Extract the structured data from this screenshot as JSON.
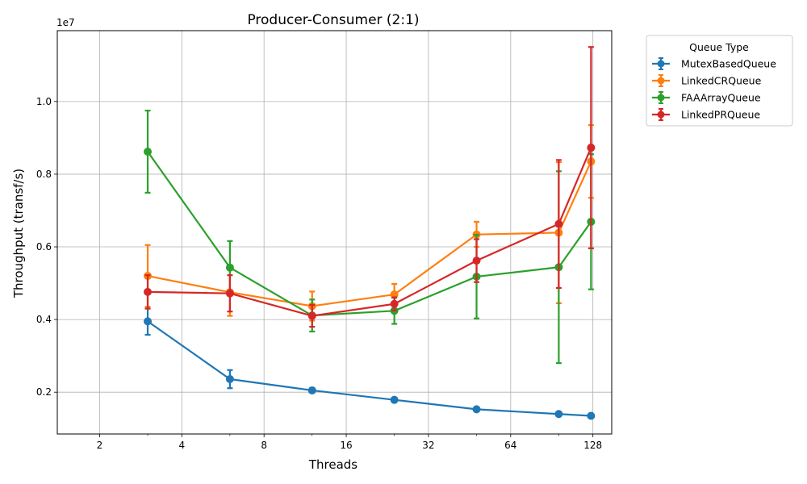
{
  "chart_data": {
    "type": "line",
    "title": "Producer-Consumer (2:1)",
    "xlabel": "Threads",
    "ylabel": "Throughput (transf/s)",
    "y_offset_label": "1e7",
    "x_scale": "log2",
    "x_ticks": [
      2,
      4,
      8,
      16,
      32,
      64,
      128
    ],
    "x_tick_labels": [
      "2",
      "4",
      "8",
      "16",
      "32",
      "64",
      "128"
    ],
    "xlim": [
      1.4,
      150
    ],
    "y_ticks": [
      0.2,
      0.4,
      0.6,
      0.8,
      1.0
    ],
    "y_tick_labels": [
      "0.2",
      "0.4",
      "0.6",
      "0.8",
      "1.0"
    ],
    "ylim": [
      0.085,
      1.195
    ],
    "grid": true,
    "legend_title": "Queue Type",
    "legend_position": "outside-top-right",
    "series": [
      {
        "name": "MutexBasedQueue",
        "color": "#1f77b4",
        "x": [
          3,
          6,
          12,
          24,
          48,
          96,
          126
        ],
        "y": [
          0.395,
          0.236,
          0.205,
          0.179,
          0.153,
          0.14,
          0.135
        ],
        "err_low": [
          0.358,
          0.211,
          0.199,
          0.175,
          0.15,
          0.137,
          0.133
        ],
        "err_high": [
          0.432,
          0.261,
          0.211,
          0.183,
          0.156,
          0.143,
          0.137
        ]
      },
      {
        "name": "LinkedCRQueue",
        "color": "#ff7f0e",
        "x": [
          3,
          6,
          12,
          24,
          48,
          96,
          126
        ],
        "y": [
          0.52,
          0.475,
          0.437,
          0.469,
          0.634,
          0.639,
          0.835
        ],
        "err_low": [
          0.435,
          0.41,
          0.397,
          0.44,
          0.6,
          0.445,
          0.735
        ],
        "err_high": [
          0.605,
          0.54,
          0.477,
          0.498,
          0.669,
          0.833,
          0.935
        ]
      },
      {
        "name": "FAAArrayQueue",
        "color": "#2ca02c",
        "x": [
          3,
          6,
          12,
          24,
          48,
          96,
          126
        ],
        "y": [
          0.862,
          0.543,
          0.411,
          0.424,
          0.518,
          0.544,
          0.669
        ],
        "err_low": [
          0.749,
          0.47,
          0.367,
          0.388,
          0.403,
          0.28,
          0.483
        ],
        "err_high": [
          0.975,
          0.616,
          0.455,
          0.46,
          0.633,
          0.808,
          0.855
        ]
      },
      {
        "name": "LinkedPRQueue",
        "color": "#d62728",
        "x": [
          3,
          6,
          12,
          24,
          48,
          96,
          126
        ],
        "y": [
          0.476,
          0.472,
          0.41,
          0.443,
          0.562,
          0.663,
          0.873
        ],
        "err_low": [
          0.43,
          0.422,
          0.38,
          0.425,
          0.503,
          0.487,
          0.596
        ],
        "err_high": [
          0.522,
          0.522,
          0.44,
          0.461,
          0.621,
          0.839,
          1.15
        ]
      }
    ]
  }
}
